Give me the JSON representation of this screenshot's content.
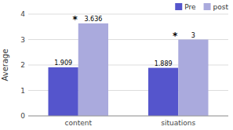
{
  "chart_data": {
    "type": "bar",
    "categories": [
      "content",
      "situations"
    ],
    "series": [
      {
        "name": "Pre",
        "color": "#5555cc",
        "values": [
          1.909,
          1.889
        ]
      },
      {
        "name": "post",
        "color": "#aaaadd",
        "values": [
          3.636,
          3
        ]
      }
    ],
    "ylabel": "Average",
    "ylim": [
      0,
      4
    ],
    "yticks": [
      0,
      1,
      2,
      3,
      4
    ],
    "grid": true,
    "legend": "upper right",
    "data_labels": true,
    "annotations": [
      {
        "text": "*",
        "x": "content"
      },
      {
        "text": "*",
        "x": "situations"
      }
    ]
  }
}
